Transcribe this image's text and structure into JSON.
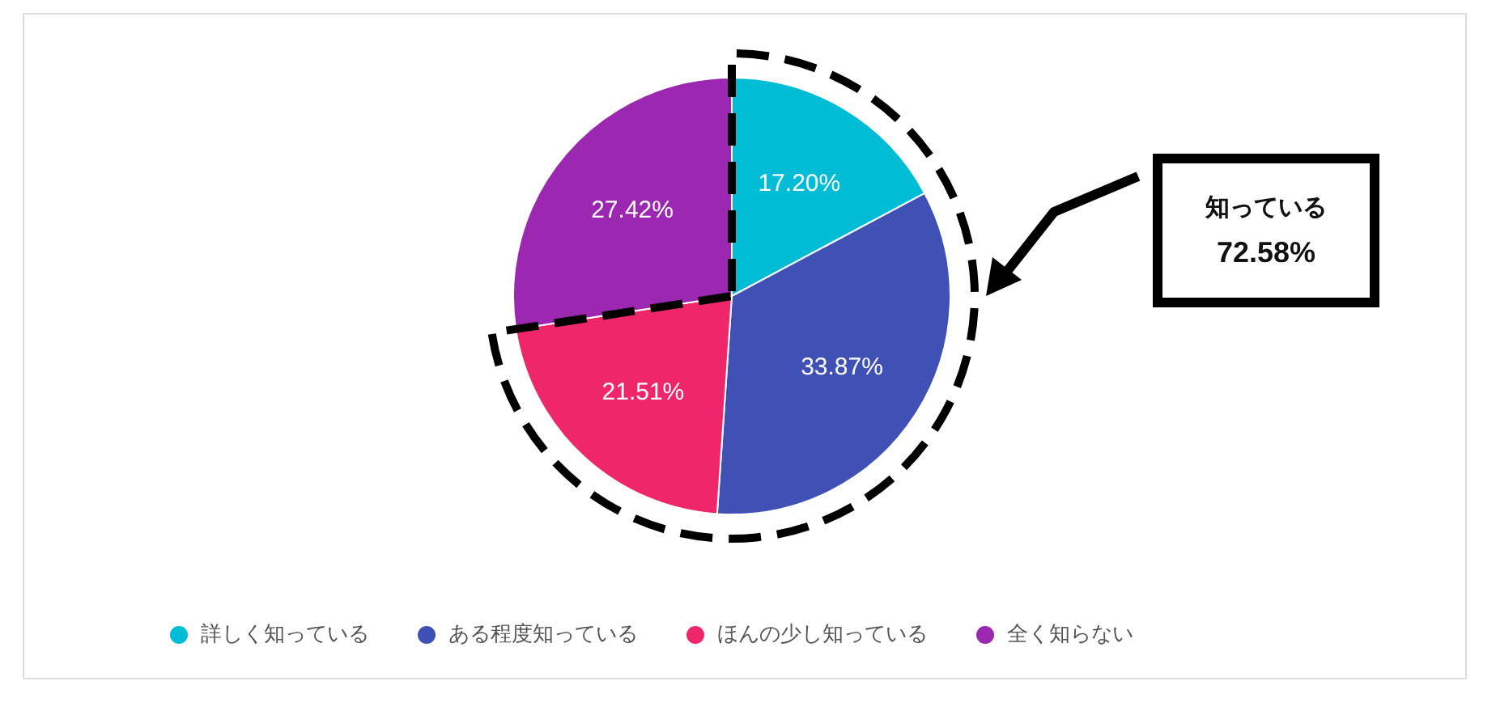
{
  "chart_data": {
    "type": "pie",
    "categories": [
      "詳しく知っている",
      "ある程度知っている",
      "ほんの少し知っている",
      "全く知らない"
    ],
    "values": [
      17.2,
      33.87,
      21.51,
      27.42
    ],
    "colors": [
      "#00bcd4",
      "#3f51b5",
      "#f0266b",
      "#9c27b0"
    ],
    "value_labels": [
      "17.20%",
      "33.87%",
      "21.51%",
      "27.42%"
    ],
    "annotations": [
      "知っている",
      "72.58%"
    ],
    "legend": "bottom left"
  }
}
